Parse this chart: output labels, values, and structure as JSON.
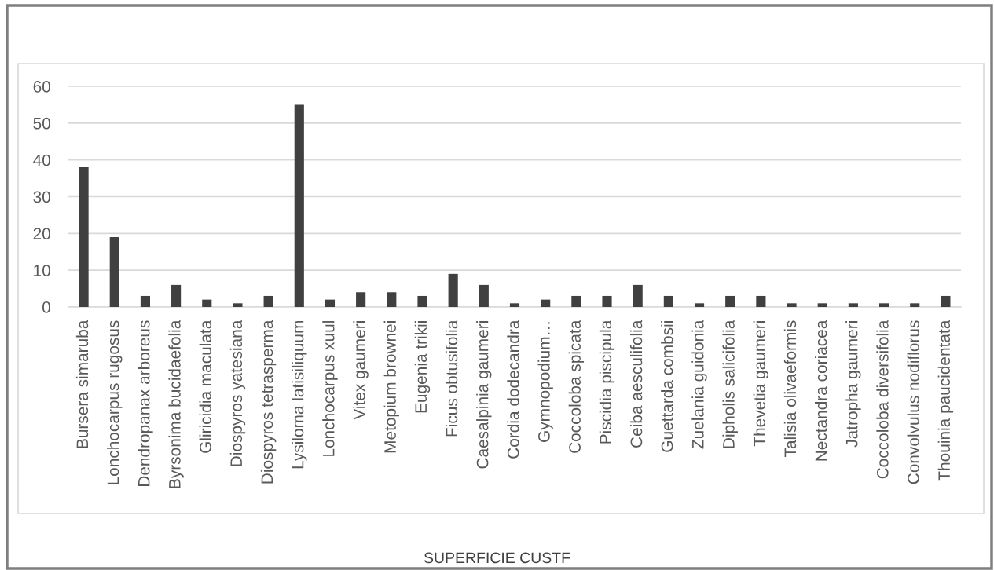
{
  "chart_data": {
    "type": "bar",
    "title": "SUPERFICIE CUSTF",
    "categories": [
      "Bursera simaruba",
      "Lonchocarpus rugosus",
      "Dendropanax arboreus",
      "Byrsonima bucidaefolia",
      "Gliricidia maculata",
      "Diospyros yatesiana",
      "Diospyros tetrasperma",
      "Lysiloma latisiliquum",
      "Lonchocarpus xuul",
      "Vitex gaumeri",
      "Metopium brownei",
      "Eugenia trikii",
      "Ficus obtusifolia",
      "Caesalpinia gaumeri",
      "Cordia dodecandra",
      "Gymnopodium…",
      "Coccoloba spicata",
      "Piscidia piscipula",
      "Ceiba aesculifolia",
      "Guettarda combsii",
      "Zuelania guidonia",
      "Dipholis salicifolia",
      "Thevetia gaumeri",
      "Talisia olivaeformis",
      "Nectandra coriacea",
      "Jatropha gaumeri",
      "Coccoloba diversifolia",
      "Convolvulus nodiflorus",
      "Thouinia paucidentata"
    ],
    "values": [
      38,
      19,
      3,
      6,
      2,
      1,
      3,
      55,
      2,
      4,
      4,
      3,
      9,
      6,
      1,
      2,
      3,
      3,
      6,
      3,
      1,
      3,
      3,
      1,
      1,
      1,
      1,
      1,
      3
    ],
    "color": "#404040",
    "ylim": [
      0,
      60
    ],
    "yticks": [
      0,
      10,
      20,
      30,
      40,
      50,
      60
    ],
    "grid": "y"
  }
}
